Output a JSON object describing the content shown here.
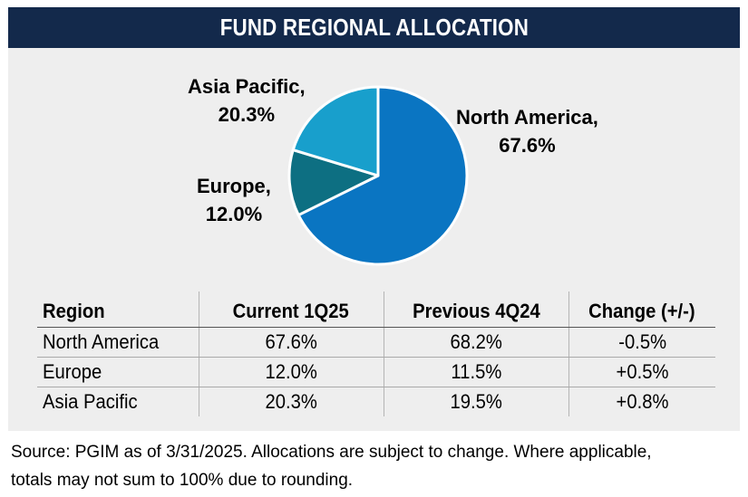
{
  "header": {
    "title": "FUND REGIONAL ALLOCATION"
  },
  "colors": {
    "header_bg": "#13294b",
    "panel_bg": "#eeeeee",
    "north_america": "#0a75c2",
    "europe": "#0d6f82",
    "asia_pacific": "#189fcc"
  },
  "chart_data": {
    "type": "pie",
    "title": "FUND REGIONAL ALLOCATION",
    "slices": [
      {
        "name": "North America",
        "value": 67.6,
        "label_name": "North America,",
        "label_value": "67.6%"
      },
      {
        "name": "Europe",
        "value": 12.0,
        "label_name": "Europe,",
        "label_value": "12.0%"
      },
      {
        "name": "Asia Pacific",
        "value": 20.3,
        "label_name": "Asia Pacific,",
        "label_value": "20.3%"
      }
    ]
  },
  "table": {
    "headers": [
      "Region",
      "Current 1Q25",
      "Previous 4Q24",
      "Change (+/-)"
    ],
    "rows": [
      [
        "North America",
        "67.6%",
        "68.2%",
        "-0.5%"
      ],
      [
        "Europe",
        "12.0%",
        "11.5%",
        "+0.5%"
      ],
      [
        "Asia Pacific",
        "20.3%",
        "19.5%",
        "+0.8%"
      ]
    ]
  },
  "footer": {
    "source_line1": "Source: PGIM as of 3/31/2025. Allocations are subject to change. Where applicable,",
    "source_line2": "totals may not sum to 100% due to rounding."
  }
}
